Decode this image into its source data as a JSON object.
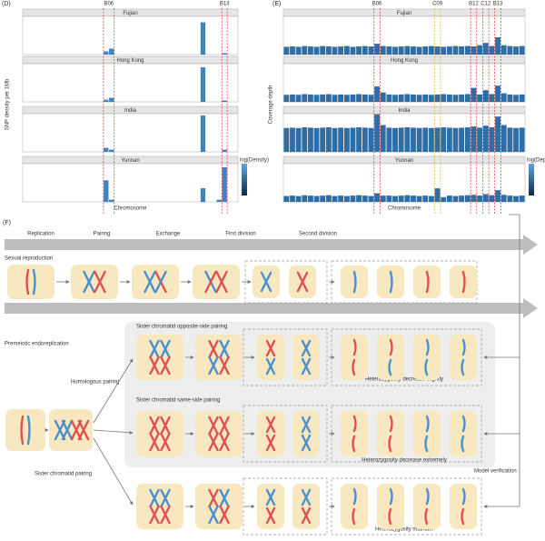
{
  "chart_data": [
    {
      "type": "bar",
      "label": "(D)",
      "y_label": "SNP density per 1Mb",
      "x_label": "Chromosome",
      "legend_title": "log(Density)",
      "color": "#3d85c6",
      "ylim": [
        0,
        25000
      ],
      "markers": [
        {
          "label": "B06",
          "bins": [
            15,
            16
          ],
          "color": "#e03030"
        },
        {
          "label": "B13",
          "bins": [
            37,
            37
          ],
          "color": "#e03030"
        }
      ],
      "facets": [
        {
          "name": "Fujian",
          "values": [
            0,
            0,
            0,
            0,
            0,
            0,
            0,
            0,
            0,
            0,
            0,
            0,
            0,
            0,
            0,
            2000,
            3800,
            0,
            0,
            0,
            0,
            0,
            0,
            0,
            0,
            0,
            0,
            0,
            0,
            0,
            0,
            0,
            0,
            21000,
            0,
            0,
            0,
            700,
            0,
            0
          ]
        },
        {
          "name": "Hong Kong",
          "values": [
            0,
            0,
            0,
            0,
            0,
            0,
            0,
            0,
            0,
            0,
            0,
            0,
            0,
            0,
            0,
            1300,
            2500,
            0,
            0,
            0,
            0,
            0,
            0,
            0,
            0,
            0,
            0,
            0,
            0,
            0,
            0,
            0,
            0,
            22500,
            0,
            0,
            0,
            800,
            0,
            0
          ]
        },
        {
          "name": "India",
          "values": [
            0,
            0,
            0,
            0,
            0,
            0,
            0,
            0,
            0,
            0,
            0,
            0,
            0,
            0,
            0,
            2500,
            1300,
            0,
            0,
            0,
            0,
            0,
            0,
            0,
            0,
            0,
            0,
            0,
            0,
            0,
            0,
            0,
            0,
            23700,
            0,
            0,
            0,
            1300,
            0,
            0
          ]
        },
        {
          "name": "Yunnan",
          "values": [
            0,
            0,
            0,
            0,
            0,
            0,
            0,
            0,
            0,
            0,
            0,
            0,
            0,
            0,
            0,
            14000,
            1300,
            0,
            0,
            0,
            0,
            0,
            0,
            0,
            0,
            0,
            0,
            0,
            0,
            0,
            0,
            0,
            0,
            8800,
            0,
            0,
            1300,
            22500,
            0,
            0
          ]
        }
      ]
    },
    {
      "type": "bar",
      "label": "(E)",
      "y_label": "Coverage depth",
      "x_label": "Chromosome",
      "legend_title": "log(Depth)",
      "color": "#2e6ea6",
      "ylim": [
        0,
        100
      ],
      "markers": [
        {
          "label": "B06",
          "bins": [
            15,
            15
          ],
          "color": "#e03030"
        },
        {
          "label": "C09",
          "bins": [
            25,
            25
          ],
          "color": "#f0a030"
        },
        {
          "label": "B12",
          "bins": [
            31,
            31
          ],
          "color": "#e03030"
        },
        {
          "label": "C12",
          "bins": [
            33,
            33
          ],
          "color": "#e03030"
        },
        {
          "label": "B13",
          "bins": [
            35,
            35
          ],
          "color": "#e03030"
        }
      ],
      "facets": [
        {
          "name": "Fujian",
          "values": [
            20,
            21,
            20,
            22,
            21,
            20,
            22,
            21,
            20,
            21,
            22,
            20,
            21,
            22,
            21,
            28,
            22,
            21,
            20,
            21,
            22,
            21,
            20,
            21,
            22,
            21,
            20,
            21,
            22,
            21,
            22,
            21,
            24,
            30,
            22,
            45,
            24,
            22,
            21,
            22
          ]
        },
        {
          "name": "Hong Kong",
          "values": [
            18,
            19,
            18,
            20,
            19,
            18,
            19,
            20,
            18,
            19,
            18,
            19,
            20,
            19,
            18,
            40,
            24,
            19,
            18,
            19,
            20,
            19,
            18,
            19,
            18,
            19,
            20,
            19,
            18,
            19,
            20,
            36,
            19,
            30,
            20,
            42,
            22,
            19,
            18,
            19
          ]
        },
        {
          "name": "India",
          "values": [
            62,
            63,
            62,
            64,
            63,
            62,
            63,
            64,
            62,
            63,
            62,
            63,
            64,
            63,
            62,
            98,
            70,
            63,
            62,
            63,
            64,
            63,
            62,
            63,
            62,
            63,
            64,
            63,
            62,
            63,
            64,
            66,
            63,
            68,
            64,
            92,
            70,
            63,
            62,
            63
          ]
        },
        {
          "name": "Yunnan",
          "values": [
            15,
            16,
            15,
            17,
            16,
            15,
            16,
            17,
            15,
            16,
            15,
            16,
            17,
            16,
            15,
            22,
            16,
            16,
            15,
            16,
            17,
            16,
            15,
            16,
            15,
            35,
            12,
            16,
            15,
            16,
            17,
            18,
            16,
            20,
            17,
            30,
            18,
            16,
            15,
            16
          ]
        }
      ]
    }
  ],
  "diagram": {
    "label": "(F)",
    "stages": [
      "Replication",
      "Pairing",
      "Exchange",
      "First division",
      "Second division"
    ],
    "sexual": "Sexual reproduction",
    "endo": "Premeiotic endoreplication",
    "opposite": "Sister chromatid opposite-side pairing",
    "homologous": "Homologous pairing",
    "same": "Sister chromatid same-side pairing",
    "slightly": "Heterozygosity decrease slightly",
    "extremely": "Heterozygosity decrease extremely",
    "verification": "Model verification",
    "sister": "Sister chromatid pairing",
    "maintain": "Heterozygosity maintain"
  }
}
